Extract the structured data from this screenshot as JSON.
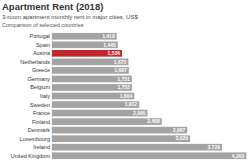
{
  "chart_data": {
    "type": "bar",
    "orientation": "horizontal",
    "title": "Apartment Rent (2018)",
    "subtitle": "3-room apartment monthly rent in major cities, US$",
    "annotations": [
      "Comparison of selected countries"
    ],
    "categories": [
      "Portugal",
      "Spain",
      "Austria",
      "Netherlands",
      "Greece",
      "Germany",
      "Belgium",
      "Italy",
      "Sweden",
      "France",
      "Finland",
      "Denmark",
      "Luxembourg",
      "Ireland",
      "United Kingdom"
    ],
    "values": [
      1419,
      1445,
      1536,
      1675,
      1687,
      1751,
      1753,
      1804,
      1912,
      2095,
      2408,
      2967,
      3029,
      3729,
      4263
    ],
    "value_labels": [
      "1,419",
      "1,445",
      "1,536",
      "1,675",
      "1,687",
      "1,751",
      "1,753",
      "1,804",
      "1,912",
      "2,095",
      "2,408",
      "2,967",
      "3,029",
      "3,729",
      "4,263"
    ],
    "colors": [
      "#a3a3a3",
      "#a3a3a3",
      "#c3272b",
      "#a3a3a3",
      "#a3a3a3",
      "#a3a3a3",
      "#a3a3a3",
      "#a3a3a3",
      "#a3a3a3",
      "#a3a3a3",
      "#a3a3a3",
      "#a3a3a3",
      "#a3a3a3",
      "#a3a3a3",
      "#a3a3a3"
    ],
    "xlim": [
      0,
      4300
    ],
    "data_labels": true,
    "tick_labels": "y",
    "grid": false
  }
}
